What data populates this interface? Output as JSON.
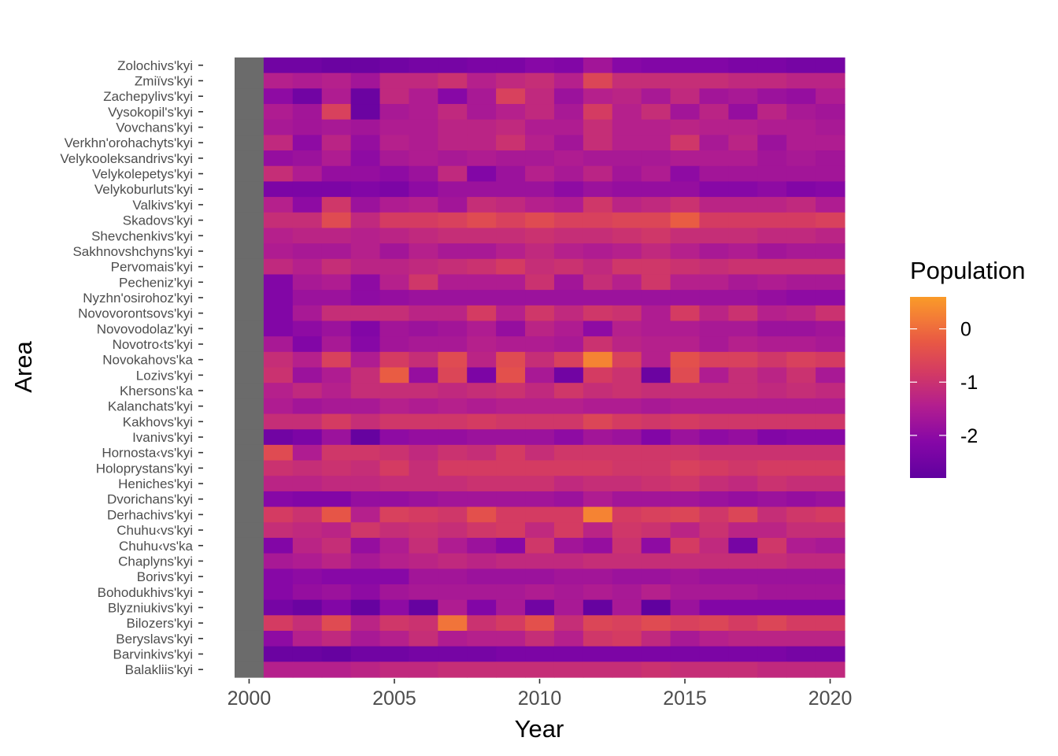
{
  "chart_data": {
    "type": "heatmap",
    "xlabel": "Year",
    "ylabel": "Area",
    "legend_title": "Population",
    "legend_placement": "right",
    "x_ticks": [
      2000,
      2005,
      2010,
      2015,
      2020
    ],
    "xlim": [
      2000,
      2020
    ],
    "colorscale": "plasma (truncated)",
    "color_range": [
      -2.8,
      0.6
    ],
    "legend_breaks": [
      0,
      -1,
      -2
    ],
    "missing_value_color": "#6b6b6b",
    "missing_year": 2000,
    "years": [
      2000,
      2001,
      2002,
      2003,
      2004,
      2005,
      2006,
      2007,
      2008,
      2009,
      2010,
      2011,
      2012,
      2013,
      2014,
      2015,
      2016,
      2017,
      2018,
      2019,
      2020
    ],
    "areas": [
      {
        "name": "Zolochivs'kyi",
        "values": [
          null,
          -2.5,
          -2.5,
          -2.6,
          -2.6,
          -2.5,
          -2.4,
          -2.4,
          -2.3,
          -2.3,
          -2.1,
          -2.2,
          -1.7,
          -2.1,
          -2.2,
          -2.2,
          -2.2,
          -2.3,
          -2.3,
          -2.4,
          -2.4
        ]
      },
      {
        "name": "Zmiïvs'kyi",
        "values": [
          null,
          -1.4,
          -1.5,
          -1.4,
          -1.7,
          -1.2,
          -1.2,
          -1.0,
          -1.4,
          -1.2,
          -1.1,
          -1.4,
          -0.6,
          -1.1,
          -1.1,
          -1.1,
          -1.1,
          -1.2,
          -1.2,
          -1.3,
          -1.3
        ]
      },
      {
        "name": "Zachepylivs'kyi",
        "values": [
          null,
          -2.0,
          -2.5,
          -1.5,
          -2.6,
          -1.2,
          -1.5,
          -2.1,
          -1.6,
          -0.7,
          -1.2,
          -1.8,
          -1.4,
          -1.3,
          -1.6,
          -1.2,
          -1.7,
          -1.6,
          -1.8,
          -1.9,
          -1.5
        ]
      },
      {
        "name": "Vysokopil's'kyi",
        "values": [
          null,
          -1.5,
          -1.7,
          -0.7,
          -2.6,
          -1.6,
          -1.5,
          -1.2,
          -1.6,
          -1.4,
          -1.2,
          -1.6,
          -0.8,
          -1.4,
          -1.1,
          -1.7,
          -1.3,
          -1.9,
          -1.3,
          -1.6,
          -1.7
        ]
      },
      {
        "name": "Vovchans'kyi",
        "values": [
          null,
          -1.6,
          -1.7,
          -1.6,
          -1.7,
          -1.5,
          -1.5,
          -1.3,
          -1.3,
          -1.2,
          -1.5,
          -1.5,
          -1.1,
          -1.4,
          -1.4,
          -1.3,
          -1.4,
          -1.4,
          -1.5,
          -1.5,
          -1.6
        ]
      },
      {
        "name": "Verkhn'orohachyts'kyi",
        "values": [
          null,
          -1.2,
          -2.0,
          -1.3,
          -1.9,
          -1.4,
          -1.5,
          -1.3,
          -1.3,
          -1.0,
          -1.4,
          -1.7,
          -1.1,
          -1.4,
          -1.4,
          -0.9,
          -1.6,
          -1.3,
          -1.8,
          -1.5,
          -1.5
        ]
      },
      {
        "name": "Velykooleksandrivs'kyi",
        "values": [
          null,
          -1.9,
          -1.8,
          -1.5,
          -2.0,
          -1.6,
          -1.5,
          -1.6,
          -1.5,
          -1.6,
          -1.6,
          -1.5,
          -1.6,
          -1.6,
          -1.6,
          -1.5,
          -1.5,
          -1.5,
          -1.7,
          -1.6,
          -1.7
        ]
      },
      {
        "name": "Velykolepetys'kyi",
        "values": [
          null,
          -1.1,
          -1.5,
          -1.9,
          -1.9,
          -2.0,
          -1.8,
          -1.2,
          -2.2,
          -1.8,
          -1.4,
          -1.6,
          -1.3,
          -1.7,
          -1.5,
          -2.0,
          -1.7,
          -1.7,
          -1.7,
          -1.7,
          -1.7
        ]
      },
      {
        "name": "Velykoburluts'kyi",
        "values": [
          null,
          -2.3,
          -2.3,
          -2.3,
          -2.2,
          -2.3,
          -2.0,
          -1.8,
          -1.8,
          -1.8,
          -1.8,
          -2.0,
          -1.8,
          -1.9,
          -1.9,
          -1.9,
          -2.1,
          -2.1,
          -2.0,
          -2.2,
          -2.1
        ]
      },
      {
        "name": "Valkivs'kyi",
        "values": [
          null,
          -1.4,
          -2.0,
          -0.9,
          -1.8,
          -1.5,
          -1.4,
          -1.7,
          -1.1,
          -1.2,
          -1.4,
          -1.5,
          -0.9,
          -1.3,
          -1.2,
          -1.0,
          -1.3,
          -1.3,
          -1.3,
          -1.2,
          -1.5
        ]
      },
      {
        "name": "Skadovs'kyi",
        "values": [
          null,
          -1.1,
          -1.1,
          -0.5,
          -1.2,
          -0.8,
          -0.8,
          -0.7,
          -0.5,
          -0.7,
          -0.5,
          -0.7,
          -0.7,
          -0.6,
          -0.6,
          -0.2,
          -0.8,
          -0.8,
          -0.8,
          -0.8,
          -0.7
        ]
      },
      {
        "name": "Shevchenkivs'kyi",
        "values": [
          null,
          -1.4,
          -1.3,
          -1.3,
          -1.4,
          -1.3,
          -1.2,
          -1.1,
          -1.1,
          -1.1,
          -1.0,
          -1.1,
          -1.1,
          -1.0,
          -0.9,
          -1.1,
          -1.1,
          -1.1,
          -1.2,
          -1.2,
          -1.3
        ]
      },
      {
        "name": "Sakhnovshchyns'kyi",
        "values": [
          null,
          -1.5,
          -1.6,
          -1.6,
          -1.4,
          -1.7,
          -1.4,
          -1.6,
          -1.6,
          -1.4,
          -1.2,
          -1.4,
          -1.5,
          -1.4,
          -1.2,
          -1.4,
          -1.6,
          -1.5,
          -1.7,
          -1.6,
          -1.6
        ]
      },
      {
        "name": "Pervomais'kyi",
        "values": [
          null,
          -1.2,
          -1.4,
          -1.1,
          -1.3,
          -1.3,
          -1.2,
          -1.1,
          -1.0,
          -0.8,
          -1.1,
          -1.0,
          -1.2,
          -0.9,
          -0.9,
          -1.0,
          -1.1,
          -1.0,
          -1.0,
          -1.0,
          -1.0
        ]
      },
      {
        "name": "Pecheniz'kyi",
        "values": [
          null,
          -2.2,
          -1.6,
          -1.5,
          -2.0,
          -1.4,
          -0.9,
          -1.5,
          -1.5,
          -1.5,
          -1.0,
          -1.7,
          -1.1,
          -1.4,
          -0.9,
          -1.4,
          -1.4,
          -1.6,
          -1.5,
          -1.6,
          -1.6
        ]
      },
      {
        "name": "Nyzhn'osirohoz'kyi",
        "values": [
          null,
          -2.2,
          -1.8,
          -1.8,
          -2.0,
          -1.9,
          -1.8,
          -1.8,
          -1.8,
          -1.8,
          -1.8,
          -1.8,
          -1.8,
          -1.8,
          -1.8,
          -1.8,
          -1.8,
          -1.8,
          -1.9,
          -2.0,
          -2.0
        ]
      },
      {
        "name": "Novovorontsovs'kyi",
        "values": [
          null,
          -2.2,
          -1.6,
          -1.1,
          -1.1,
          -1.1,
          -1.3,
          -1.3,
          -0.8,
          -1.4,
          -0.9,
          -1.2,
          -0.9,
          -1.0,
          -1.5,
          -0.8,
          -1.3,
          -1.0,
          -1.4,
          -1.3,
          -1.0
        ]
      },
      {
        "name": "Novovodolaz'kyi",
        "values": [
          null,
          -2.2,
          -2.0,
          -1.8,
          -2.2,
          -1.7,
          -1.8,
          -1.7,
          -1.5,
          -1.9,
          -1.3,
          -1.5,
          -2.0,
          -1.4,
          -1.5,
          -1.5,
          -1.6,
          -1.6,
          -1.8,
          -1.8,
          -1.7
        ]
      },
      {
        "name": "Novotro‹ts'kyi",
        "values": [
          null,
          -1.6,
          -2.2,
          -1.6,
          -2.1,
          -1.7,
          -1.6,
          -1.6,
          -1.4,
          -1.5,
          -1.5,
          -1.6,
          -1.0,
          -1.3,
          -1.4,
          -1.4,
          -1.6,
          -1.4,
          -1.5,
          -1.5,
          -1.6
        ]
      },
      {
        "name": "Novokahovs'ka",
        "values": [
          null,
          -1.1,
          -1.4,
          -0.7,
          -1.5,
          -0.8,
          -1.1,
          -0.5,
          -1.3,
          -0.5,
          -1.1,
          -0.7,
          0.3,
          -0.7,
          -1.4,
          -0.4,
          -0.7,
          -0.7,
          -0.9,
          -0.7,
          -0.8
        ]
      },
      {
        "name": "Lozivs'kyi",
        "values": [
          null,
          -1.0,
          -1.8,
          -1.5,
          -1.1,
          -0.2,
          -1.9,
          -0.6,
          -2.3,
          -0.4,
          -1.6,
          -2.5,
          -0.8,
          -1.0,
          -2.6,
          -0.5,
          -1.5,
          -1.1,
          -1.3,
          -1.0,
          -1.6
        ]
      },
      {
        "name": "Khersons'ka",
        "values": [
          null,
          -1.4,
          -1.2,
          -1.4,
          -1.1,
          -1.1,
          -1.1,
          -1.2,
          -1.1,
          -1.0,
          -1.2,
          -0.9,
          -1.1,
          -1.0,
          -1.1,
          -1.1,
          -1.1,
          -1.1,
          -1.2,
          -1.1,
          -1.2
        ]
      },
      {
        "name": "Kalanchats'kyi",
        "values": [
          null,
          -1.5,
          -1.7,
          -1.6,
          -1.6,
          -1.4,
          -1.5,
          -1.4,
          -1.5,
          -1.4,
          -1.4,
          -1.4,
          -1.5,
          -1.5,
          -1.6,
          -1.5,
          -1.5,
          -1.5,
          -1.5,
          -1.5,
          -1.5
        ]
      },
      {
        "name": "Kakhovs'kyi",
        "values": [
          null,
          -1.1,
          -1.1,
          -0.8,
          -1.1,
          -0.9,
          -0.9,
          -0.9,
          -0.8,
          -0.9,
          -0.9,
          -0.9,
          -0.6,
          -0.8,
          -0.9,
          -0.8,
          -0.9,
          -0.9,
          -0.9,
          -0.9,
          -0.9
        ]
      },
      {
        "name": "Ivanivs'kyi",
        "values": [
          null,
          -2.5,
          -2.3,
          -1.8,
          -2.7,
          -2.0,
          -1.9,
          -1.9,
          -1.8,
          -1.8,
          -1.8,
          -2.0,
          -1.7,
          -1.8,
          -2.2,
          -1.8,
          -2.0,
          -1.9,
          -2.2,
          -2.1,
          -2.1
        ]
      },
      {
        "name": "Hornosta‹vs'kyi",
        "values": [
          null,
          -0.5,
          -1.5,
          -0.9,
          -0.9,
          -1.0,
          -1.2,
          -1.0,
          -1.1,
          -0.8,
          -1.1,
          -0.9,
          -0.9,
          -0.9,
          -0.9,
          -0.9,
          -1.0,
          -1.0,
          -1.0,
          -1.0,
          -1.0
        ]
      },
      {
        "name": "Holoprystans'kyi",
        "values": [
          null,
          -1.0,
          -1.1,
          -1.0,
          -1.1,
          -0.8,
          -1.1,
          -0.8,
          -0.8,
          -0.8,
          -0.8,
          -0.8,
          -0.8,
          -0.9,
          -0.9,
          -0.7,
          -0.8,
          -0.9,
          -0.8,
          -0.8,
          -0.8
        ]
      },
      {
        "name": "Heniches'kyi",
        "values": [
          null,
          -1.3,
          -1.3,
          -1.2,
          -1.2,
          -1.1,
          -1.1,
          -1.1,
          -1.0,
          -1.0,
          -1.0,
          -1.2,
          -1.1,
          -1.1,
          -1.0,
          -0.9,
          -1.1,
          -1.2,
          -1.0,
          -1.1,
          -1.1
        ]
      },
      {
        "name": "Dvorichans'kyi",
        "values": [
          null,
          -2.1,
          -2.2,
          -2.2,
          -1.9,
          -1.9,
          -1.8,
          -1.7,
          -1.7,
          -1.7,
          -1.7,
          -1.8,
          -1.5,
          -1.7,
          -1.7,
          -1.7,
          -1.8,
          -1.9,
          -1.8,
          -1.9,
          -1.8
        ]
      },
      {
        "name": "Derhachivs'kyi",
        "values": [
          null,
          -0.8,
          -1.0,
          -0.3,
          -1.4,
          -0.7,
          -0.8,
          -0.9,
          -0.4,
          -0.8,
          -0.8,
          -0.8,
          0.3,
          -0.8,
          -0.7,
          -0.6,
          -0.9,
          -0.6,
          -1.1,
          -0.9,
          -0.8
        ]
      },
      {
        "name": "Chuhu‹vs'kyi",
        "values": [
          null,
          -1.1,
          -1.2,
          -1.3,
          -0.9,
          -1.1,
          -1.0,
          -1.1,
          -0.9,
          -0.8,
          -1.2,
          -0.8,
          -1.3,
          -0.9,
          -1.0,
          -1.3,
          -1.0,
          -1.3,
          -1.3,
          -1.1,
          -1.1
        ]
      },
      {
        "name": "Chuhu‹vs'ka",
        "values": [
          null,
          -2.2,
          -1.3,
          -1.1,
          -1.9,
          -1.5,
          -1.1,
          -1.5,
          -1.8,
          -2.1,
          -0.9,
          -1.7,
          -1.9,
          -1.0,
          -2.0,
          -0.8,
          -1.2,
          -2.4,
          -0.9,
          -1.5,
          -1.6
        ]
      },
      {
        "name": "Chaplyns'kyi",
        "values": [
          null,
          -1.6,
          -1.5,
          -1.3,
          -1.6,
          -1.4,
          -1.3,
          -1.2,
          -1.3,
          -1.2,
          -1.2,
          -1.2,
          -1.1,
          -1.1,
          -1.1,
          -1.1,
          -1.1,
          -1.1,
          -1.1,
          -1.2,
          -1.2
        ]
      },
      {
        "name": "Borivs'kyi",
        "values": [
          null,
          -2.1,
          -2.0,
          -2.1,
          -2.1,
          -2.1,
          -1.7,
          -1.7,
          -1.8,
          -1.8,
          -1.8,
          -1.7,
          -1.7,
          -1.8,
          -1.8,
          -1.7,
          -1.8,
          -1.8,
          -1.8,
          -1.8,
          -1.8
        ]
      },
      {
        "name": "Bohodukhivs'kyi",
        "values": [
          null,
          -2.1,
          -1.9,
          -1.8,
          -2.0,
          -1.7,
          -1.6,
          -1.6,
          -1.6,
          -1.6,
          -1.5,
          -1.6,
          -1.5,
          -1.6,
          -1.4,
          -1.6,
          -1.6,
          -1.6,
          -1.7,
          -1.7,
          -1.7
        ]
      },
      {
        "name": "Blyzniukivs'kyi",
        "values": [
          null,
          -2.4,
          -2.6,
          -2.2,
          -2.7,
          -2.0,
          -2.7,
          -1.5,
          -2.2,
          -1.6,
          -2.5,
          -1.6,
          -2.7,
          -1.6,
          -2.8,
          -1.8,
          -2.2,
          -2.2,
          -2.2,
          -2.2,
          -2.2
        ]
      },
      {
        "name": "Bilozers'kyi",
        "values": [
          null,
          -0.8,
          -1.1,
          -0.5,
          -1.3,
          -0.9,
          -1.0,
          0.1,
          -1.0,
          -0.8,
          -0.4,
          -1.1,
          -0.6,
          -0.7,
          -0.5,
          -0.7,
          -0.6,
          -0.8,
          -0.6,
          -0.8,
          -0.8
        ]
      },
      {
        "name": "Beryslavs'kyi",
        "values": [
          null,
          -2.0,
          -1.4,
          -1.2,
          -1.6,
          -1.4,
          -1.1,
          -1.5,
          -1.4,
          -1.4,
          -1.1,
          -1.4,
          -0.9,
          -0.8,
          -1.2,
          -1.6,
          -1.4,
          -1.3,
          -1.3,
          -1.3,
          -1.3
        ]
      },
      {
        "name": "Barvinkivs'kyi",
        "values": [
          null,
          -2.6,
          -2.6,
          -2.7,
          -2.5,
          -2.5,
          -2.4,
          -2.4,
          -2.4,
          -2.3,
          -2.3,
          -2.3,
          -2.3,
          -2.3,
          -2.3,
          -2.3,
          -2.3,
          -2.3,
          -2.3,
          -2.4,
          -2.4
        ]
      },
      {
        "name": "Balakliis'kyi",
        "values": [
          null,
          -1.4,
          -1.4,
          -1.4,
          -1.3,
          -1.2,
          -1.2,
          -1.1,
          -1.1,
          -1.1,
          -1.1,
          -1.1,
          -1.1,
          -1.1,
          -1.0,
          -1.1,
          -1.1,
          -1.1,
          -1.2,
          -1.2,
          -1.2
        ]
      }
    ]
  }
}
